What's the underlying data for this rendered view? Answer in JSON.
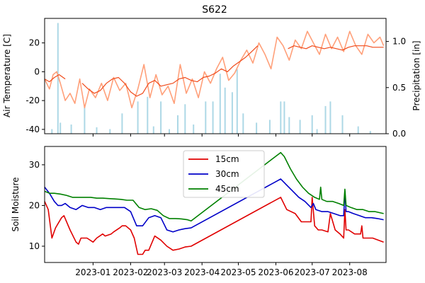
{
  "chart_data": [
    {
      "type": "line",
      "panel": "top",
      "title": "S622",
      "ylabel": "Air Temperature [C]",
      "y2label": "Precipitation [in]",
      "ylim": [
        -43,
        37
      ],
      "y2lim": [
        0.0,
        1.25
      ],
      "yticks": [
        -40,
        -20,
        0,
        20
      ],
      "y2ticks": [
        0.0,
        0.5,
        1.0
      ],
      "y2ticklabels": [
        "0.0",
        "0.5",
        "1.0"
      ],
      "xlim": [
        "2022-11-22",
        "2023-08-31"
      ],
      "grid": false,
      "colors": {
        "temp_raw": "#ffa07a",
        "temp_smooth": "#f04a1a",
        "precip": "#add8e6"
      },
      "series": [
        {
          "kind": "line",
          "axis": "left",
          "role": "raw",
          "x": [
            "2022-11-22",
            "2022-11-26",
            "2022-11-29",
            "2022-12-02",
            "2022-12-05",
            "2022-12-09",
            "2022-12-13",
            "2022-12-17",
            "2022-12-21",
            "2022-12-25",
            "2022-12-29",
            "2023-01-03",
            "2023-01-08",
            "2023-01-13",
            "2023-01-18",
            "2023-01-23",
            "2023-01-28",
            "2023-02-02",
            "2023-02-07",
            "2023-02-12",
            "2023-02-17",
            "2023-02-22",
            "2023-02-27",
            "2023-03-04",
            "2023-03-09",
            "2023-03-14",
            "2023-03-19",
            "2023-03-24",
            "2023-03-29",
            "2023-04-03",
            "2023-04-08",
            "2023-04-13",
            "2023-04-18",
            "2023-04-23",
            "2023-04-28",
            "2023-05-03",
            "2023-05-08",
            "2023-05-13",
            "2023-05-18",
            "2023-05-23",
            "2023-05-28",
            "2023-06-02",
            "2023-06-07",
            "2023-06-12",
            "2023-06-17",
            "2023-06-22",
            "2023-06-27",
            "2023-07-02",
            "2023-07-07",
            "2023-07-12",
            "2023-07-17",
            "2023-07-22",
            "2023-07-27",
            "2023-08-01",
            "2023-08-06",
            "2023-08-11",
            "2023-08-16",
            "2023-08-21",
            "2023-08-26",
            "2023-08-29"
          ],
          "values": [
            -5,
            -12,
            -2,
            0,
            -8,
            -20,
            -15,
            -22,
            -5,
            -25,
            -12,
            -18,
            -8,
            -20,
            -4,
            -13,
            -8,
            -25,
            -12,
            5,
            -18,
            -2,
            -16,
            -10,
            -22,
            5,
            -15,
            -5,
            -18,
            0,
            -8,
            2,
            10,
            -6,
            -1,
            8,
            15,
            6,
            20,
            12,
            2,
            24,
            18,
            8,
            22,
            16,
            28,
            20,
            12,
            26,
            16,
            24,
            14,
            28,
            18,
            12,
            26,
            20,
            24,
            18
          ]
        },
        {
          "kind": "line",
          "axis": "left",
          "role": "smoothed",
          "x": [
            "2022-11-22",
            "2022-11-26",
            "2022-11-30",
            "2022-12-04",
            "2022-12-09",
            "2022-12-13",
            "2022-12-18",
            "2022-12-23",
            "2022-12-28",
            "2023-01-02",
            "2023-01-07",
            "2023-01-12",
            "2023-01-17",
            "2023-01-22",
            "2023-01-27",
            "2023-02-01",
            "2023-02-06",
            "2023-02-11",
            "2023-02-16",
            "2023-02-21",
            "2023-02-26",
            "2023-03-03",
            "2023-03-08",
            "2023-03-13",
            "2023-03-18",
            "2023-03-23",
            "2023-03-28",
            "2023-04-02",
            "2023-04-07",
            "2023-04-12",
            "2023-04-17",
            "2023-04-22",
            "2023-04-27",
            "2023-05-02",
            "2023-05-07",
            "2023-05-12",
            "2023-05-17",
            "2023-05-22",
            "2023-05-27",
            "2023-06-01",
            "2023-06-06",
            "2023-06-11",
            "2023-06-16",
            "2023-06-21",
            "2023-06-26",
            "2023-07-01",
            "2023-07-06",
            "2023-07-11",
            "2023-07-16",
            "2023-07-21",
            "2023-07-26",
            "2023-07-31",
            "2023-08-05",
            "2023-08-10",
            "2023-08-15",
            "2023-08-20",
            "2023-08-25",
            "2023-08-29"
          ],
          "values": [
            -5,
            -7,
            -4,
            -2,
            -5,
            null,
            null,
            -8,
            -12,
            -15,
            -13,
            -8,
            -5,
            -4,
            -8,
            -14,
            -17,
            -15,
            -8,
            -6,
            -10,
            -9,
            -8,
            -5,
            -4,
            -6,
            -7,
            -4,
            -3,
            -1,
            2,
            0,
            4,
            7,
            10,
            14,
            18,
            null,
            null,
            null,
            null,
            16,
            18,
            17,
            16,
            18,
            17,
            16,
            17,
            16,
            15,
            17,
            18,
            18,
            18,
            17,
            17,
            17
          ]
        },
        {
          "kind": "bar",
          "axis": "right",
          "role": "precipitation",
          "x": [
            "2022-11-28",
            "2022-12-03",
            "2022-12-05",
            "2022-12-14",
            "2022-12-25",
            "2023-01-04",
            "2023-01-15",
            "2023-01-25",
            "2023-02-07",
            "2023-02-15",
            "2023-02-20",
            "2023-02-26",
            "2023-03-05",
            "2023-03-12",
            "2023-03-18",
            "2023-03-25",
            "2023-04-04",
            "2023-04-10",
            "2023-04-16",
            "2023-04-20",
            "2023-04-26",
            "2023-04-30",
            "2023-05-05",
            "2023-05-16",
            "2023-05-27",
            "2023-06-05",
            "2023-06-08",
            "2023-06-12",
            "2023-06-21",
            "2023-07-01",
            "2023-07-05",
            "2023-07-12",
            "2023-07-16",
            "2023-07-26",
            "2023-08-08",
            "2023-08-18"
          ],
          "values": [
            0.05,
            1.2,
            0.12,
            0.1,
            0.3,
            0.07,
            0.05,
            0.22,
            0.35,
            0.4,
            0.08,
            0.35,
            0.05,
            0.2,
            0.32,
            0.1,
            0.35,
            0.35,
            0.65,
            0.5,
            0.45,
            0.7,
            0.22,
            0.12,
            0.15,
            0.35,
            0.35,
            0.18,
            0.15,
            0.2,
            0.05,
            0.3,
            0.35,
            0.2,
            0.08,
            0.03
          ]
        }
      ]
    },
    {
      "type": "line",
      "panel": "bottom",
      "ylabel": "Soil Moisture",
      "ylim": [
        6,
        34.5
      ],
      "yticks": [
        10,
        20,
        30
      ],
      "xlim": [
        "2022-11-22",
        "2023-08-31"
      ],
      "xticklabels": [
        "2023-01",
        "2023-02",
        "2023-03",
        "2023-04",
        "2023-05",
        "2023-06",
        "2023-07",
        "2023-08"
      ],
      "legend": "upper-center",
      "grid": false,
      "series": [
        {
          "name": "15cm",
          "color": "#e00000",
          "x": [
            "2022-11-22",
            "2022-11-25",
            "2022-11-28",
            "2022-12-01",
            "2022-12-03",
            "2022-12-06",
            "2022-12-08",
            "2022-12-13",
            "2022-12-18",
            "2022-12-20",
            "2022-12-22",
            "2022-12-27",
            "2023-01-01",
            "2023-01-04",
            "2023-01-09",
            "2023-01-11",
            "2023-01-16",
            "2023-01-18",
            "2023-01-23",
            "2023-01-25",
            "2023-01-28",
            "2023-02-01",
            "2023-02-04",
            "2023-02-07",
            "2023-02-11",
            "2023-02-13",
            "2023-02-16",
            "2023-02-21",
            "2023-02-26",
            "2023-03-03",
            "2023-03-08",
            "2023-03-13",
            "2023-03-18",
            "2023-03-23",
            "2023-06-05",
            "2023-06-10",
            "2023-06-17",
            "2023-06-22",
            "2023-06-27",
            "2023-06-30",
            "2023-07-01",
            "2023-07-03",
            "2023-07-06",
            "2023-07-09",
            "2023-07-14",
            "2023-07-16",
            "2023-07-20",
            "2023-07-24",
            "2023-07-27",
            "2023-07-28",
            "2023-07-29",
            "2023-07-31",
            "2023-08-05",
            "2023-08-10",
            "2023-08-11",
            "2023-08-12",
            "2023-08-20",
            "2023-08-29"
          ],
          "values": [
            21,
            19,
            12,
            14.5,
            15.5,
            17,
            17.5,
            14,
            11,
            10.5,
            12,
            12,
            11,
            12,
            13,
            12.5,
            13,
            13.5,
            14.5,
            15,
            15,
            14,
            12,
            8,
            8,
            9,
            9,
            12.5,
            11.5,
            10,
            9,
            9.3,
            9.8,
            10,
            22,
            19,
            18,
            16,
            16,
            16,
            22,
            15,
            14,
            14,
            13.5,
            18,
            14,
            13,
            12,
            19,
            14,
            14,
            13,
            13,
            15,
            12,
            12,
            11
          ]
        },
        {
          "name": "30cm",
          "color": "#0000c8",
          "x": [
            "2022-11-22",
            "2022-11-26",
            "2022-11-30",
            "2022-12-03",
            "2022-12-06",
            "2022-12-09",
            "2022-12-13",
            "2022-12-18",
            "2022-12-23",
            "2022-12-28",
            "2023-01-02",
            "2023-01-07",
            "2023-01-12",
            "2023-01-17",
            "2023-01-22",
            "2023-01-27",
            "2023-02-01",
            "2023-02-06",
            "2023-02-11",
            "2023-02-16",
            "2023-02-21",
            "2023-02-26",
            "2023-03-03",
            "2023-03-08",
            "2023-03-13",
            "2023-03-18",
            "2023-03-23",
            "2023-06-05",
            "2023-06-10",
            "2023-06-15",
            "2023-06-20",
            "2023-06-25",
            "2023-06-30",
            "2023-07-02",
            "2023-07-04",
            "2023-07-09",
            "2023-07-14",
            "2023-07-19",
            "2023-07-24",
            "2023-07-27",
            "2023-07-28",
            "2023-07-29",
            "2023-07-31",
            "2023-08-04",
            "2023-08-09",
            "2023-08-14",
            "2023-08-19",
            "2023-08-24",
            "2023-08-29"
          ],
          "values": [
            24.5,
            23,
            21,
            20,
            20,
            20.5,
            19.5,
            19,
            20,
            19.5,
            19.5,
            19,
            19.5,
            19.5,
            19.5,
            19.5,
            18.5,
            15,
            15,
            17,
            17.5,
            17,
            14,
            13.5,
            14,
            14.3,
            14.5,
            26.5,
            25,
            23.5,
            22,
            21,
            19.5,
            20.5,
            19,
            18.5,
            18.5,
            18,
            17.5,
            17.5,
            23.5,
            18.5,
            18.5,
            18,
            17.5,
            17,
            17,
            16.8,
            16.5
          ]
        },
        {
          "name": "45cm",
          "color": "#008000",
          "x": [
            "2022-11-22",
            "2022-11-26",
            "2022-11-30",
            "2022-12-05",
            "2022-12-10",
            "2022-12-15",
            "2022-12-20",
            "2022-12-25",
            "2022-12-30",
            "2023-01-04",
            "2023-01-09",
            "2023-01-14",
            "2023-01-19",
            "2023-01-24",
            "2023-01-29",
            "2023-02-03",
            "2023-02-08",
            "2023-02-13",
            "2023-02-18",
            "2023-02-23",
            "2023-02-28",
            "2023-03-05",
            "2023-03-10",
            "2023-03-15",
            "2023-03-20",
            "2023-03-23",
            "2023-06-05",
            "2023-06-08",
            "2023-06-13",
            "2023-06-18",
            "2023-06-23",
            "2023-06-28",
            "2023-07-03",
            "2023-07-07",
            "2023-07-08",
            "2023-07-09",
            "2023-07-13",
            "2023-07-18",
            "2023-07-23",
            "2023-07-27",
            "2023-07-28",
            "2023-07-29",
            "2023-08-02",
            "2023-08-07",
            "2023-08-12",
            "2023-08-17",
            "2023-08-22",
            "2023-08-29"
          ],
          "values": [
            23.5,
            23,
            23,
            22.8,
            22.5,
            22,
            22,
            22,
            22,
            21.8,
            21.8,
            21.7,
            21.6,
            21.5,
            21.3,
            21.3,
            19.5,
            19,
            19.2,
            18.8,
            17.5,
            16.8,
            16.8,
            16.7,
            16.5,
            16.2,
            33,
            32,
            29,
            26.5,
            24.5,
            23,
            22,
            21.5,
            24.5,
            21.5,
            21,
            21,
            20.5,
            20,
            24,
            20,
            19.5,
            19,
            19,
            18.5,
            18.5,
            18
          ]
        }
      ]
    }
  ]
}
